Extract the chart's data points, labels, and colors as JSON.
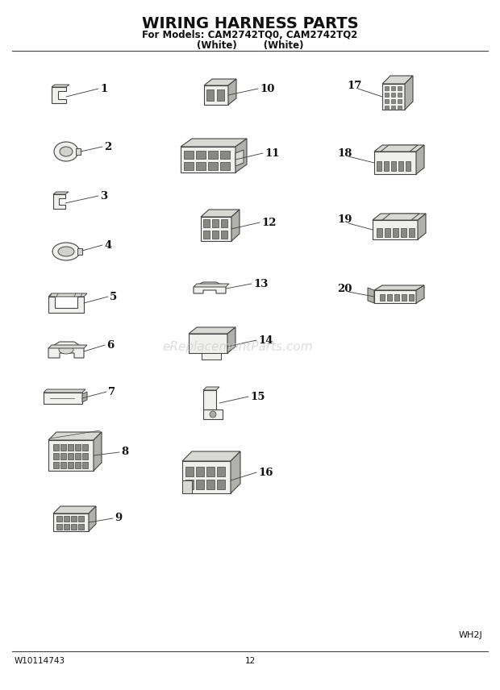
{
  "title": "WIRING HARNESS PARTS",
  "subtitle1": "For Models: CAM2742TQ0, CAM2742TQ2",
  "subtitle2": "(White)        (White)",
  "footer_left": "W10114743",
  "footer_center": "12",
  "footer_right": "WH2J",
  "watermark": "eReplacementParts.com",
  "bg_color": "#ffffff",
  "lc": "#444444",
  "fc_light": "#f0f0ee",
  "fc_mid": "#d8d8d4",
  "fc_dark": "#b0b0ac"
}
